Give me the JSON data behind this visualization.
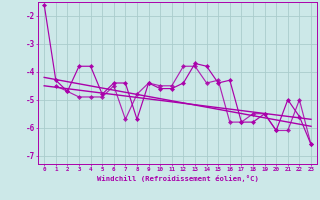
{
  "xlabel": "Windchill (Refroidissement éolien,°C)",
  "xlim": [
    -0.5,
    23.5
  ],
  "ylim": [
    -7.3,
    -1.5
  ],
  "yticks": [
    -7,
    -6,
    -5,
    -4,
    -3,
    -2
  ],
  "background_color": "#cce8e8",
  "grid_color": "#aacccc",
  "line_color": "#aa00aa",
  "series1_x": [
    0,
    1,
    2,
    3,
    4,
    5,
    6,
    7,
    8,
    9,
    10,
    11,
    12,
    13,
    14,
    15,
    16,
    17,
    18,
    19,
    20,
    21,
    22,
    23
  ],
  "series1_y": [
    -1.6,
    -4.3,
    -4.7,
    -3.8,
    -3.8,
    -4.8,
    -4.4,
    -4.4,
    -5.7,
    -4.4,
    -4.6,
    -4.6,
    -4.4,
    -3.7,
    -3.8,
    -4.4,
    -4.3,
    -5.8,
    -5.8,
    -5.5,
    -6.1,
    -5.0,
    -5.6,
    -6.6
  ],
  "series2_x": [
    1,
    2,
    3,
    4,
    5,
    6,
    7,
    8,
    9,
    10,
    11,
    12,
    13,
    14,
    15,
    16,
    17,
    18,
    19,
    20,
    21,
    22,
    23
  ],
  "series2_y": [
    -4.5,
    -4.7,
    -4.9,
    -4.9,
    -4.9,
    -4.5,
    -5.7,
    -4.8,
    -4.4,
    -4.5,
    -4.5,
    -3.8,
    -3.8,
    -4.4,
    -4.3,
    -5.8,
    -5.8,
    -5.5,
    -5.5,
    -6.1,
    -6.1,
    -5.0,
    -6.6
  ],
  "trend_x": [
    0,
    23
  ],
  "trend_y": [
    -4.2,
    -5.95
  ],
  "trend2_x": [
    0,
    23
  ],
  "trend2_y": [
    -4.5,
    -5.7
  ]
}
